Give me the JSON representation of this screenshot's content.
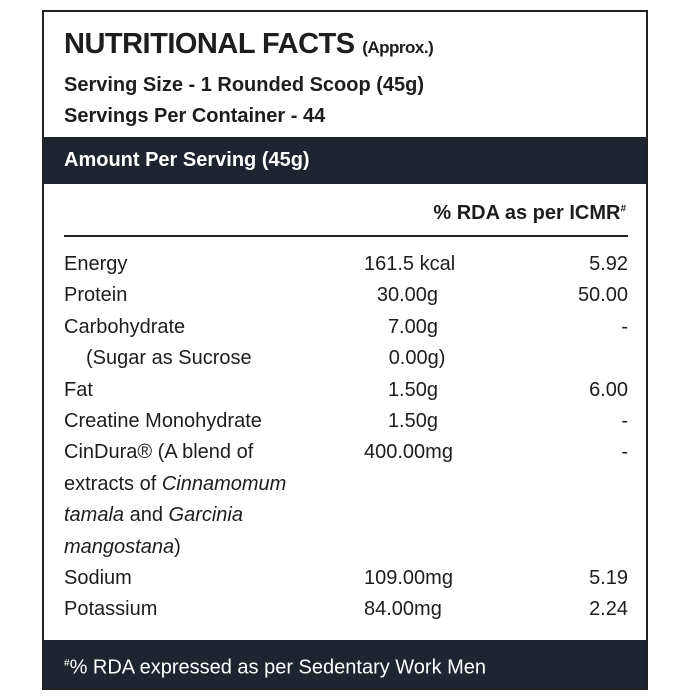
{
  "header": {
    "title": "NUTRITIONAL FACTS",
    "title_note": "(Approx.)",
    "serving_size": "Serving Size - 1 Rounded Scoop (45g)",
    "servings_per_container": "Servings Per Container - 44"
  },
  "band": "Amount Per Serving (45g)",
  "rda_header": {
    "text": "% RDA as per ICMR",
    "mark": "#"
  },
  "rows": [
    {
      "name_lines": [
        [
          {
            "text": "Energy"
          }
        ]
      ],
      "amount": "161.5 kcal",
      "rda": "5.92"
    },
    {
      "name_lines": [
        [
          {
            "text": "Protein"
          }
        ]
      ],
      "amount": "30.00g",
      "rda": "50.00"
    },
    {
      "name_lines": [
        [
          {
            "text": "Carbohydrate"
          }
        ]
      ],
      "amount": "7.00g",
      "rda": "-"
    },
    {
      "name_lines": [
        [
          {
            "text": "(Sugar as Sucrose"
          }
        ]
      ],
      "amount": "0.00g)",
      "indent": true
    },
    {
      "name_lines": [
        [
          {
            "text": "Fat"
          }
        ]
      ],
      "amount": "1.50g",
      "rda": "6.00"
    },
    {
      "name_lines": [
        [
          {
            "text": "Creatine Monohydrate"
          }
        ]
      ],
      "amount": "1.50g",
      "rda": "-"
    },
    {
      "name_lines": [
        [
          {
            "text": "CinDura® (A blend of"
          }
        ],
        [
          {
            "text": "extracts of "
          },
          {
            "text": "Cinnamomum",
            "italic": true
          }
        ],
        [
          {
            "text": "tamala",
            "italic": true
          },
          {
            "text": " and "
          },
          {
            "text": "Garcinia",
            "italic": true
          }
        ],
        [
          {
            "text": "mangostana",
            "italic": true
          },
          {
            "text": ")"
          }
        ]
      ],
      "amount": "400.00mg",
      "rda": "-"
    },
    {
      "name_lines": [
        [
          {
            "text": "Sodium"
          }
        ]
      ],
      "amount": "109.00mg",
      "rda": "5.19"
    },
    {
      "name_lines": [
        [
          {
            "text": "Potassium"
          }
        ]
      ],
      "amount": "84.00mg",
      "rda": "2.24"
    }
  ],
  "footnote": {
    "mark": "#",
    "text": "% RDA expressed as per Sedentary Work Men"
  }
}
